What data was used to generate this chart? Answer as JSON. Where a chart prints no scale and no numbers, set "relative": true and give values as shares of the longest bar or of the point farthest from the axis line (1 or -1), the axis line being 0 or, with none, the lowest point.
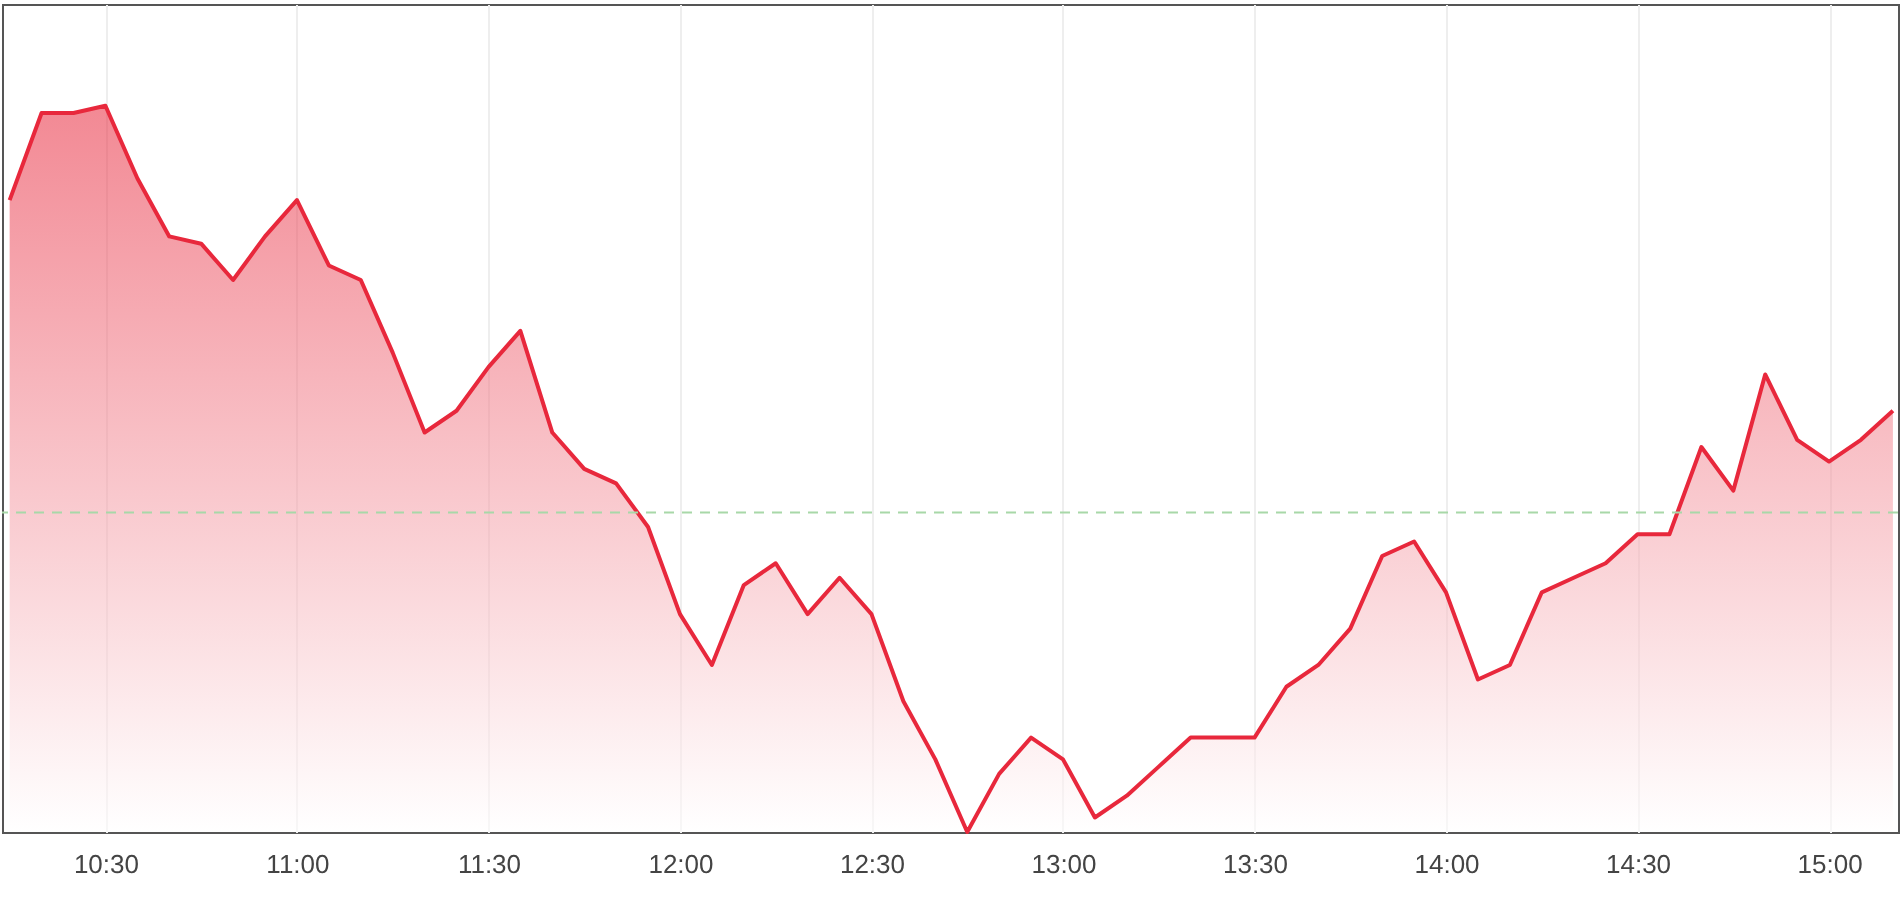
{
  "chart_data": {
    "type": "area",
    "relative": true,
    "x": [
      10.25,
      10.3333,
      10.4167,
      10.5,
      10.5833,
      10.6667,
      10.75,
      10.8333,
      10.9167,
      11.0,
      11.0833,
      11.1667,
      11.25,
      11.3333,
      11.4167,
      11.5,
      11.5833,
      11.6667,
      11.75,
      11.8333,
      11.9167,
      12.0,
      12.0833,
      12.1667,
      12.25,
      12.3333,
      12.4167,
      12.5,
      12.5833,
      12.6667,
      12.75,
      12.8333,
      12.9167,
      13.0,
      13.0833,
      13.1667,
      13.25,
      13.3333,
      13.4167,
      13.5,
      13.5833,
      13.6667,
      13.75,
      13.8333,
      13.9167,
      14.0,
      14.0833,
      14.1667,
      14.25,
      14.3333,
      14.4167,
      14.5,
      14.5833,
      14.6667,
      14.75,
      14.8333,
      14.9167,
      15.0,
      15.0833,
      15.1667
    ],
    "series": [
      {
        "color": "#e8283c",
        "values": [
          0.87,
          0.99,
          0.99,
          1,
          0.9,
          0.82,
          0.81,
          0.76,
          0.82,
          0.87,
          0.78,
          0.76,
          0.66,
          0.55,
          0.58,
          0.64,
          0.69,
          0.55,
          0.5,
          0.48,
          0.42,
          0.3,
          0.23,
          0.34,
          0.37,
          0.3,
          0.35,
          0.3,
          0.18,
          0.1,
          0,
          0.08,
          0.13,
          0.1,
          0.02,
          0.05,
          0.09,
          0.13,
          0.13,
          0.13,
          0.2,
          0.23,
          0.28,
          0.38,
          0.4,
          0.33,
          0.21,
          0.23,
          0.33,
          0.35,
          0.37,
          0.41,
          0.41,
          0.53,
          0.47,
          0.63,
          0.54,
          0.51,
          0.54,
          0.58
        ]
      }
    ],
    "xlim": [
      10.23,
      15.18
    ],
    "xticks": [
      {
        "value": 10.5,
        "label": "10:30"
      },
      {
        "value": 11,
        "label": "11:00"
      },
      {
        "value": 11.5,
        "label": "11:30"
      },
      {
        "value": 12,
        "label": "12:00"
      },
      {
        "value": 12.5,
        "label": "12:30"
      },
      {
        "value": 13,
        "label": "13:00"
      },
      {
        "value": 13.5,
        "label": "13:30"
      },
      {
        "value": 14,
        "label": "14:00"
      },
      {
        "value": 14.5,
        "label": "14:30"
      },
      {
        "value": 15,
        "label": "15:00"
      }
    ],
    "ref_lines": [
      {
        "axis": "y",
        "value": 0.44,
        "color": "#a8d8a8",
        "line_style": "dashed"
      }
    ],
    "grid": "x"
  }
}
